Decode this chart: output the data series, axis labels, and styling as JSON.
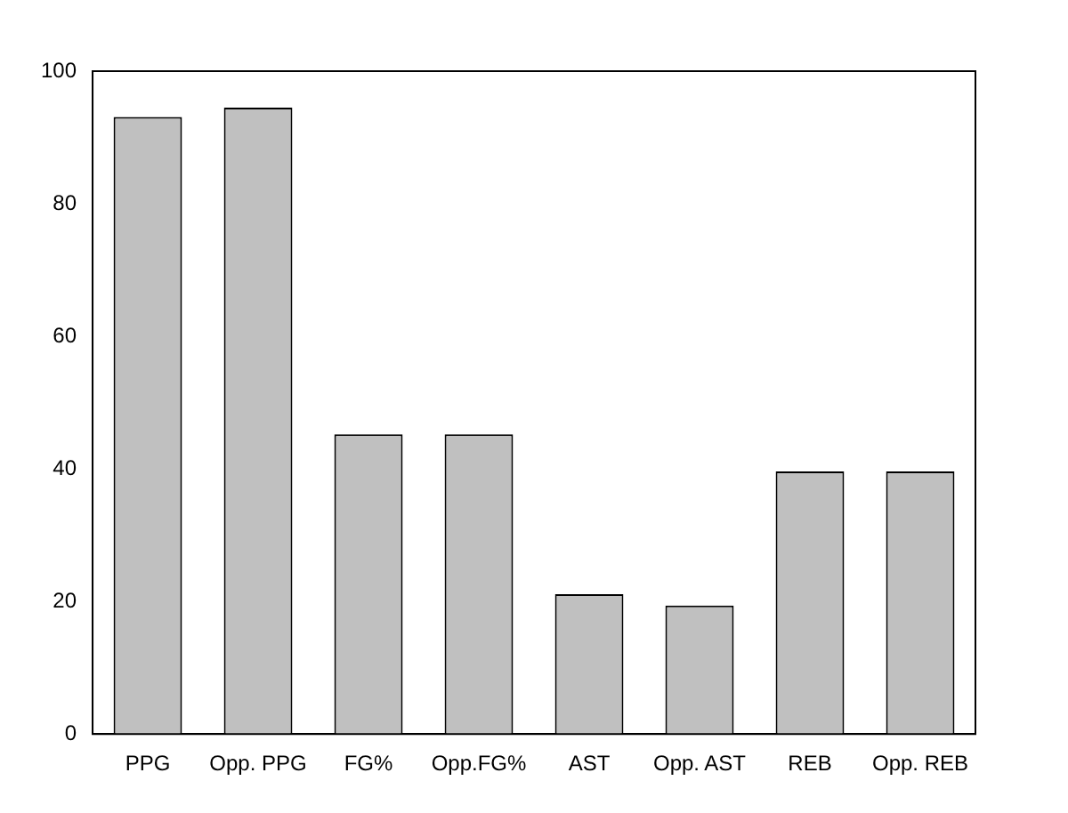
{
  "chart_data": {
    "type": "bar",
    "categories": [
      "PPG",
      "Opp. PPG",
      "FG%",
      "Opp.FG%",
      "AST",
      "Opp. AST",
      "REB",
      "Opp. REB"
    ],
    "values": [
      93.1,
      94.5,
      45.2,
      45.2,
      21.1,
      19.4,
      39.6,
      39.6
    ],
    "color": "#c0c0c0",
    "ylim": [
      0,
      100
    ],
    "yticks": [
      0,
      20,
      40,
      60,
      80,
      100
    ],
    "grid": false,
    "legend": false
  }
}
